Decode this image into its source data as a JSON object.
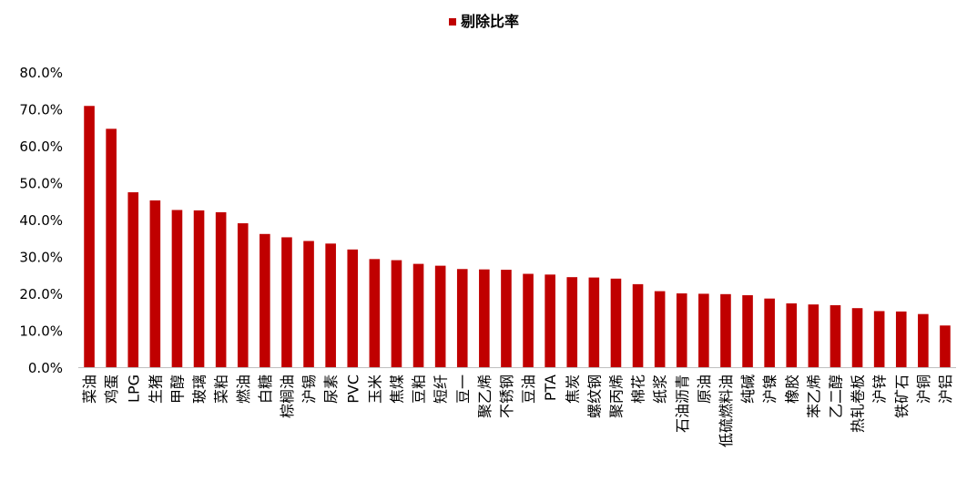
{
  "chart_data": {
    "type": "bar",
    "title": "",
    "xlabel": "",
    "ylabel": "",
    "ylim": [
      0,
      80
    ],
    "yticks": [
      "0.0%",
      "10.0%",
      "20.0%",
      "30.0%",
      "40.0%",
      "50.0%",
      "60.0%",
      "70.0%",
      "80.0%"
    ],
    "grid": false,
    "legend": {
      "position": "top-center"
    },
    "colors": {
      "bar": "#C00000",
      "axis": "#BFBFBF",
      "text": "#000000"
    },
    "categories": [
      "菜油",
      "鸡蛋",
      "LPG",
      "生猪",
      "甲醇",
      "玻璃",
      "菜粕",
      "燃油",
      "白糖",
      "棕榈油",
      "沪锡",
      "尿素",
      "PVC",
      "玉米",
      "焦煤",
      "豆粕",
      "短纤",
      "豆一",
      "聚乙烯",
      "不锈钢",
      "豆油",
      "PTA",
      "焦炭",
      "螺纹钢",
      "聚丙烯",
      "棉花",
      "纸浆",
      "石油沥青",
      "原油",
      "低硫燃料油",
      "纯碱",
      "沪镍",
      "橡胶",
      "苯乙烯",
      "乙二醇",
      "热轧卷板",
      "沪锌",
      "铁矿石",
      "沪铜",
      "沪铝"
    ],
    "series": [
      {
        "name": "剔除比率",
        "values": [
          70.8,
          64.6,
          47.4,
          45.2,
          42.6,
          42.5,
          42.0,
          39.0,
          36.1,
          35.2,
          34.2,
          33.5,
          31.9,
          29.3,
          29.0,
          28.0,
          27.5,
          26.6,
          26.5,
          26.4,
          25.3,
          25.1,
          24.4,
          24.3,
          24.0,
          22.5,
          20.6,
          20.0,
          19.9,
          19.8,
          19.5,
          18.6,
          17.3,
          17.0,
          16.8,
          16.0,
          15.2,
          15.1,
          14.4,
          11.3
        ]
      }
    ]
  }
}
